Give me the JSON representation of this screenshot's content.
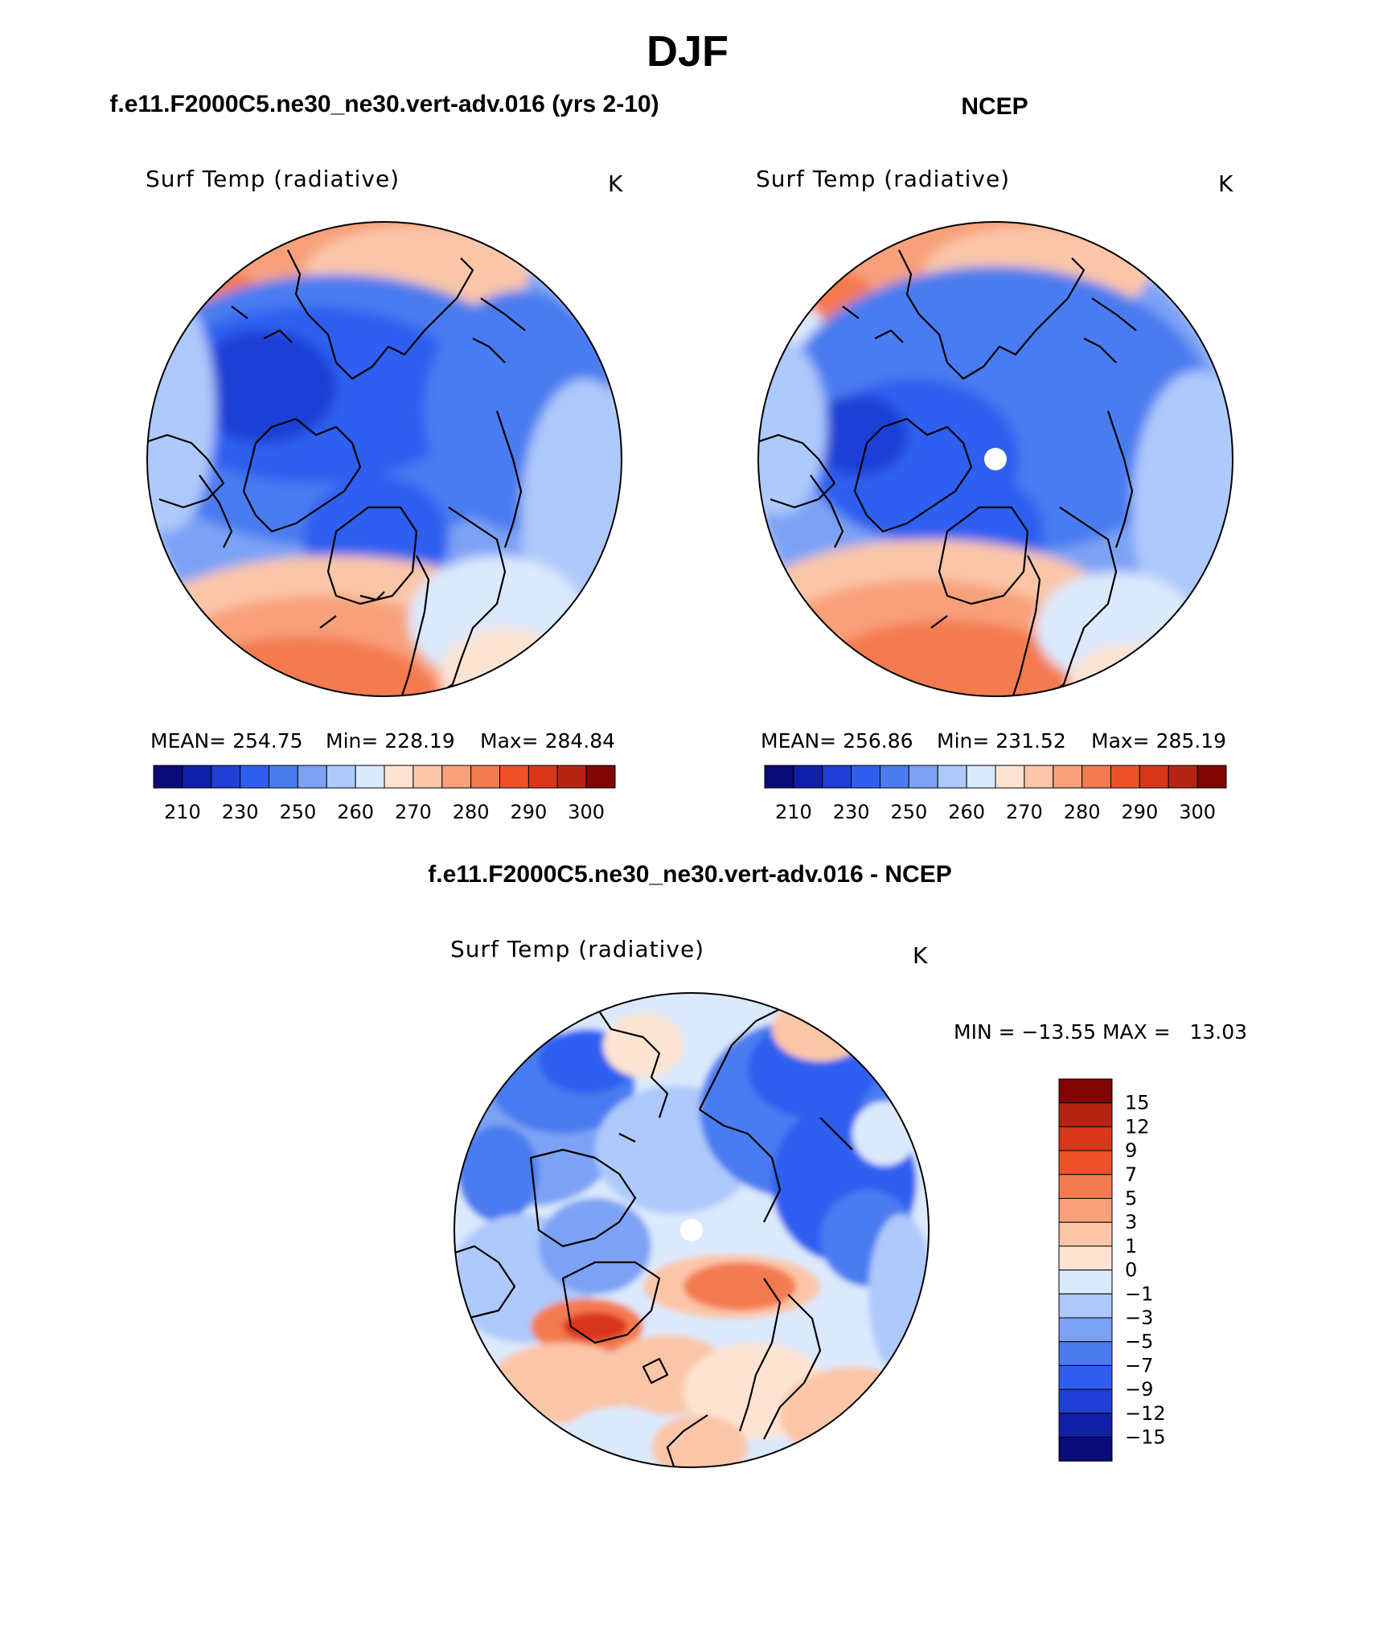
{
  "figure": {
    "season_title": "DJF",
    "panels": [
      {
        "heading": "f.e11.F2000C5.ne30_ne30.vert-adv.016 (yrs 2-10)",
        "variable": "Surf Temp (radiative)",
        "units": "K",
        "stats": {
          "mean": "MEAN= 254.75",
          "min": "Min= 228.19",
          "max": "Max= 284.84"
        },
        "has_pole_hole": false
      },
      {
        "heading": "NCEP",
        "variable": "Surf Temp (radiative)",
        "units": "K",
        "stats": {
          "mean": "MEAN= 256.86",
          "min": "Min= 231.52",
          "max": "Max= 285.19"
        },
        "has_pole_hole": true
      },
      {
        "heading": "f.e11.F2000C5.ne30_ne30.vert-adv.016 - NCEP",
        "variable": "Surf Temp (radiative)",
        "units": "K",
        "minmax": "MIN = −13.55 MAX =   13.03",
        "has_pole_hole": true
      }
    ]
  },
  "colorbar_abs": {
    "colors": [
      "#0a0a78",
      "#0f1fa8",
      "#1f3fd6",
      "#2f5ff0",
      "#4a7cf0",
      "#7da2f5",
      "#aec9fb",
      "#dbe9fd",
      "#fde4d2",
      "#fbc6a8",
      "#f8a07a",
      "#f47a50",
      "#ed5228",
      "#d9361a",
      "#b52412",
      "#800505"
    ],
    "tick_labels": [
      "210",
      "230",
      "250",
      "260",
      "270",
      "280",
      "290",
      "300"
    ]
  },
  "colorbar_diff": {
    "colors_top_to_bottom": [
      "#800505",
      "#b52412",
      "#d9361a",
      "#ed5228",
      "#f47a50",
      "#f8a07a",
      "#fbc6a8",
      "#fde4d2",
      "#dbe9fd",
      "#aec9fb",
      "#7da2f5",
      "#4a7cf0",
      "#2f5ff0",
      "#1f3fd6",
      "#0f1fa8",
      "#0a0a78"
    ],
    "tick_labels": [
      "15",
      "12",
      "9",
      "7",
      "5",
      "3",
      "1",
      "0",
      "−1",
      "−3",
      "−5",
      "−7",
      "−9",
      "−12",
      "−15"
    ]
  }
}
